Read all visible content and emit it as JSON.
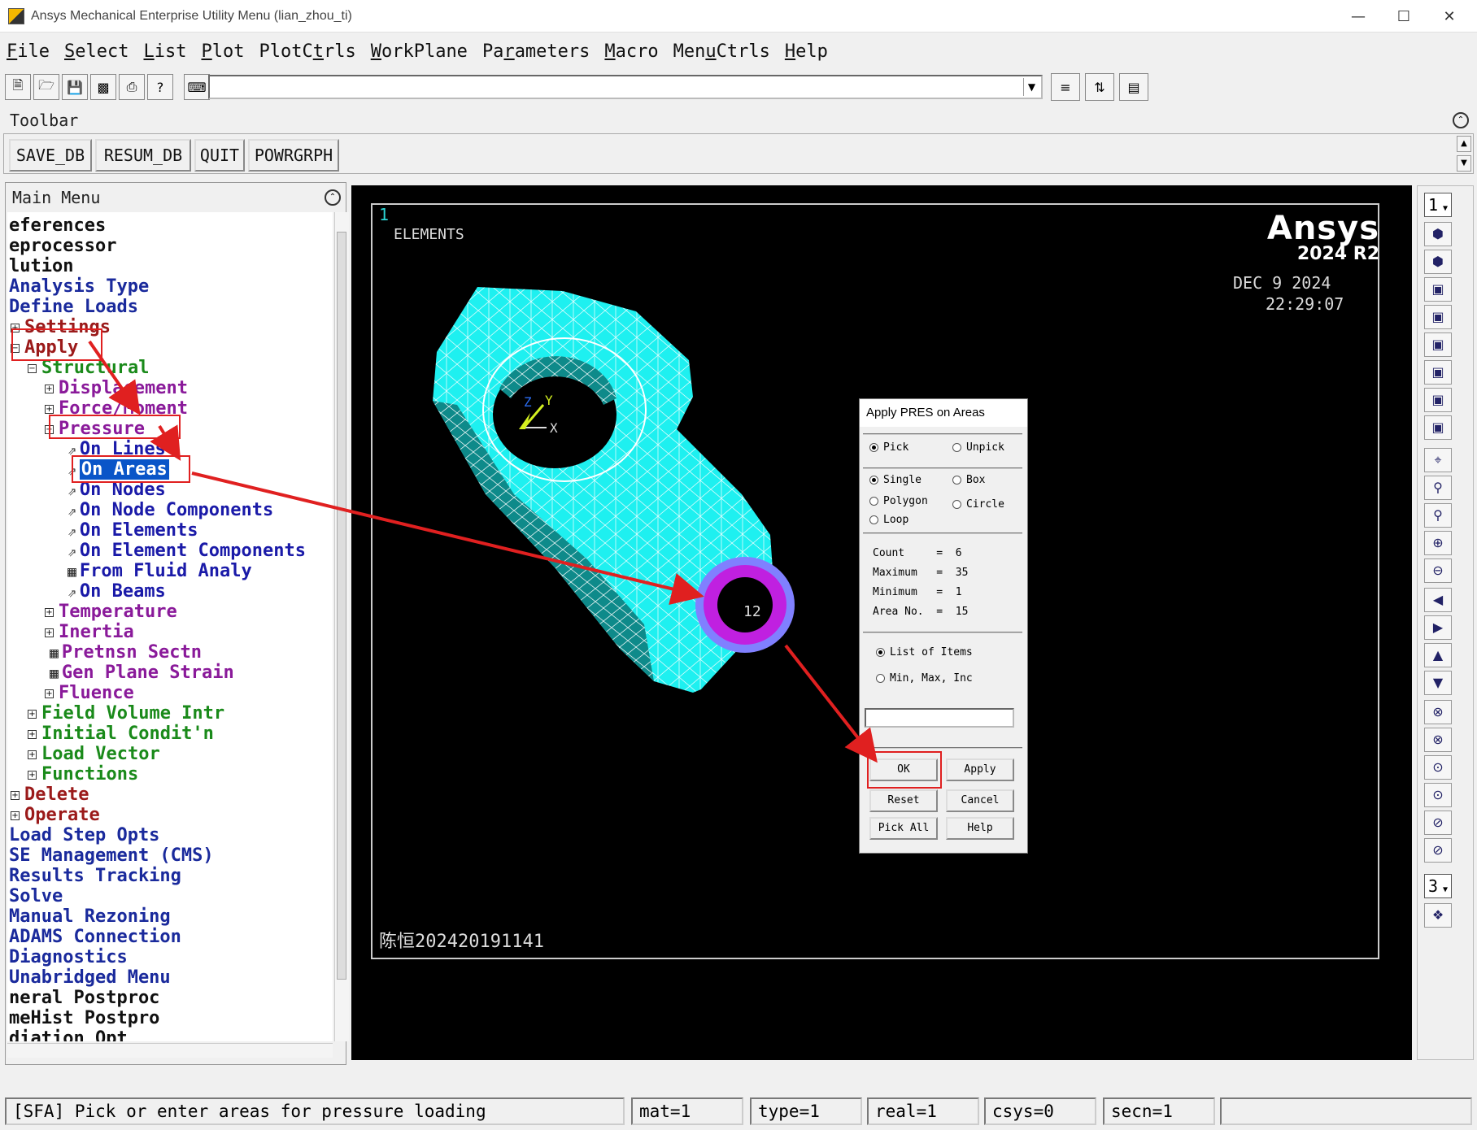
{
  "window": {
    "title": "Ansys Mechanical Enterprise Utility Menu (lian_zhou_ti)"
  },
  "menubar": {
    "items": [
      {
        "accel": "F",
        "rest": "ile"
      },
      {
        "accel": "S",
        "rest": "elect"
      },
      {
        "accel": "L",
        "rest": "ist"
      },
      {
        "accel": "P",
        "rest": "lot"
      },
      {
        "pre": "PlotC",
        "accel": "t",
        "rest": "rls"
      },
      {
        "accel": "W",
        "rest": "orkPlane"
      },
      {
        "pre": "Pa",
        "accel": "r",
        "rest": "ameters"
      },
      {
        "accel": "M",
        "rest": "acro"
      },
      {
        "pre": "Men",
        "accel": "u",
        "rest": "Ctrls"
      },
      {
        "accel": "H",
        "rest": "elp"
      }
    ]
  },
  "command": {
    "value": ""
  },
  "toolbar": {
    "header": "Toolbar",
    "buttons": [
      "SAVE_DB",
      "RESUM_DB",
      "QUIT",
      "POWRGRPH"
    ]
  },
  "main_menu": {
    "header": "Main Menu",
    "items": [
      {
        "label": "eferences",
        "color": "#111111"
      },
      {
        "label": "eprocessor",
        "color": "#111111"
      },
      {
        "label": "lution",
        "color": "#111111"
      },
      {
        "label": "Analysis Type",
        "color": "#1a2a9c"
      },
      {
        "label": "Define Loads",
        "color": "#1a2a9c"
      },
      {
        "label": "Settings",
        "color": "#9b1a1a",
        "expander": "+"
      },
      {
        "label": "Apply",
        "color": "#9b1a1a",
        "expander": "-"
      },
      {
        "label": "Structural",
        "color": "#1a8a1a",
        "expander": "-"
      },
      {
        "label": "Displacement",
        "color": "#8a1a9a",
        "expander": "+"
      },
      {
        "label": "Force/Moment",
        "color": "#8a1a9a",
        "expander": "+"
      },
      {
        "label": "Pressure",
        "color": "#8a1a9a",
        "expander": "-"
      },
      {
        "label": "On Lines",
        "color": "#1a1aa8",
        "icon": "pick"
      },
      {
        "label": "On Areas",
        "color": "#1a1aa8",
        "icon": "pick",
        "selected": true
      },
      {
        "label": "On Nodes",
        "color": "#1a1aa8",
        "icon": "pick"
      },
      {
        "label": "On Node Components",
        "color": "#1a1aa8",
        "icon": "pick"
      },
      {
        "label": "On Elements",
        "color": "#1a1aa8",
        "icon": "pick"
      },
      {
        "label": "On Element Components",
        "color": "#1a1aa8",
        "icon": "pick"
      },
      {
        "label": "From Fluid Analy",
        "color": "#1a1aa8",
        "icon": "dialog"
      },
      {
        "label": "On Beams",
        "color": "#1a1aa8",
        "icon": "pick"
      },
      {
        "label": "Temperature",
        "color": "#8a1a9a",
        "expander": "+"
      },
      {
        "label": "Inertia",
        "color": "#8a1a9a",
        "expander": "+"
      },
      {
        "label": "Pretnsn Sectn",
        "color": "#8a1a9a",
        "icon": "dialog"
      },
      {
        "label": "Gen Plane Strain",
        "color": "#8a1a9a",
        "icon": "dialog"
      },
      {
        "label": "Fluence",
        "color": "#8a1a9a",
        "expander": "+"
      },
      {
        "label": "Field Volume Intr",
        "color": "#1a8a1a",
        "expander": "+"
      },
      {
        "label": "Initial Condit'n",
        "color": "#1a8a1a",
        "expander": "+"
      },
      {
        "label": "Load Vector",
        "color": "#1a8a1a",
        "expander": "+"
      },
      {
        "label": "Functions",
        "color": "#1a8a1a",
        "expander": "+"
      },
      {
        "label": "Delete",
        "color": "#9b1a1a",
        "expander": "+"
      },
      {
        "label": "Operate",
        "color": "#9b1a1a",
        "expander": "+"
      },
      {
        "label": "Load Step Opts",
        "color": "#1a2a9c"
      },
      {
        "label": "SE Management (CMS)",
        "color": "#1a2a9c"
      },
      {
        "label": "Results Tracking",
        "color": "#1a2a9c"
      },
      {
        "label": "Solve",
        "color": "#1a2a9c"
      },
      {
        "label": "Manual Rezoning",
        "color": "#1a2a9c"
      },
      {
        "label": "ADAMS Connection",
        "color": "#1a2a9c"
      },
      {
        "label": "Diagnostics",
        "color": "#1a2a9c"
      },
      {
        "label": "Unabridged Menu",
        "color": "#1a2a9c"
      },
      {
        "label": "neral Postproc",
        "color": "#111111"
      },
      {
        "label": "meHist Postpro",
        "color": "#111111"
      },
      {
        "label": "diation Opt",
        "color": "#111111"
      }
    ]
  },
  "graphics": {
    "window_number": "1",
    "label": "ELEMENTS",
    "brand": "Ansys",
    "version": "2024 R2",
    "date": "DEC  9 2024",
    "time": "22:29:07",
    "watermark": "陈恒202420191141",
    "area_label": "12",
    "triad": {
      "x": "X",
      "y": "Y",
      "z": "Z"
    }
  },
  "right_toolbar": {
    "window_select": "1",
    "zoom_select": "3"
  },
  "dialog": {
    "title": "Apply PRES on Areas",
    "pick": "Pick",
    "unpick": "Unpick",
    "single": "Single",
    "box": "Box",
    "polygon": "Polygon",
    "circle": "Circle",
    "loop": "Loop",
    "count": "Count     =  6",
    "maximum": "Maximum   =  35",
    "minimum": "Minimum   =  1",
    "area_no": "Area No.  =  15",
    "list_items": "List of Items",
    "min_max_inc": "Min, Max, Inc",
    "input_value": "",
    "ok": "OK",
    "apply": "Apply",
    "reset": "Reset",
    "cancel": "Cancel",
    "pick_all": "Pick All",
    "help": "Help"
  },
  "status": {
    "prompt": "[SFA]  Pick or enter areas for pressure loading",
    "mat": "mat=1",
    "type": "type=1",
    "real": "real=1",
    "csys": "csys=0",
    "secn": "secn=1"
  }
}
